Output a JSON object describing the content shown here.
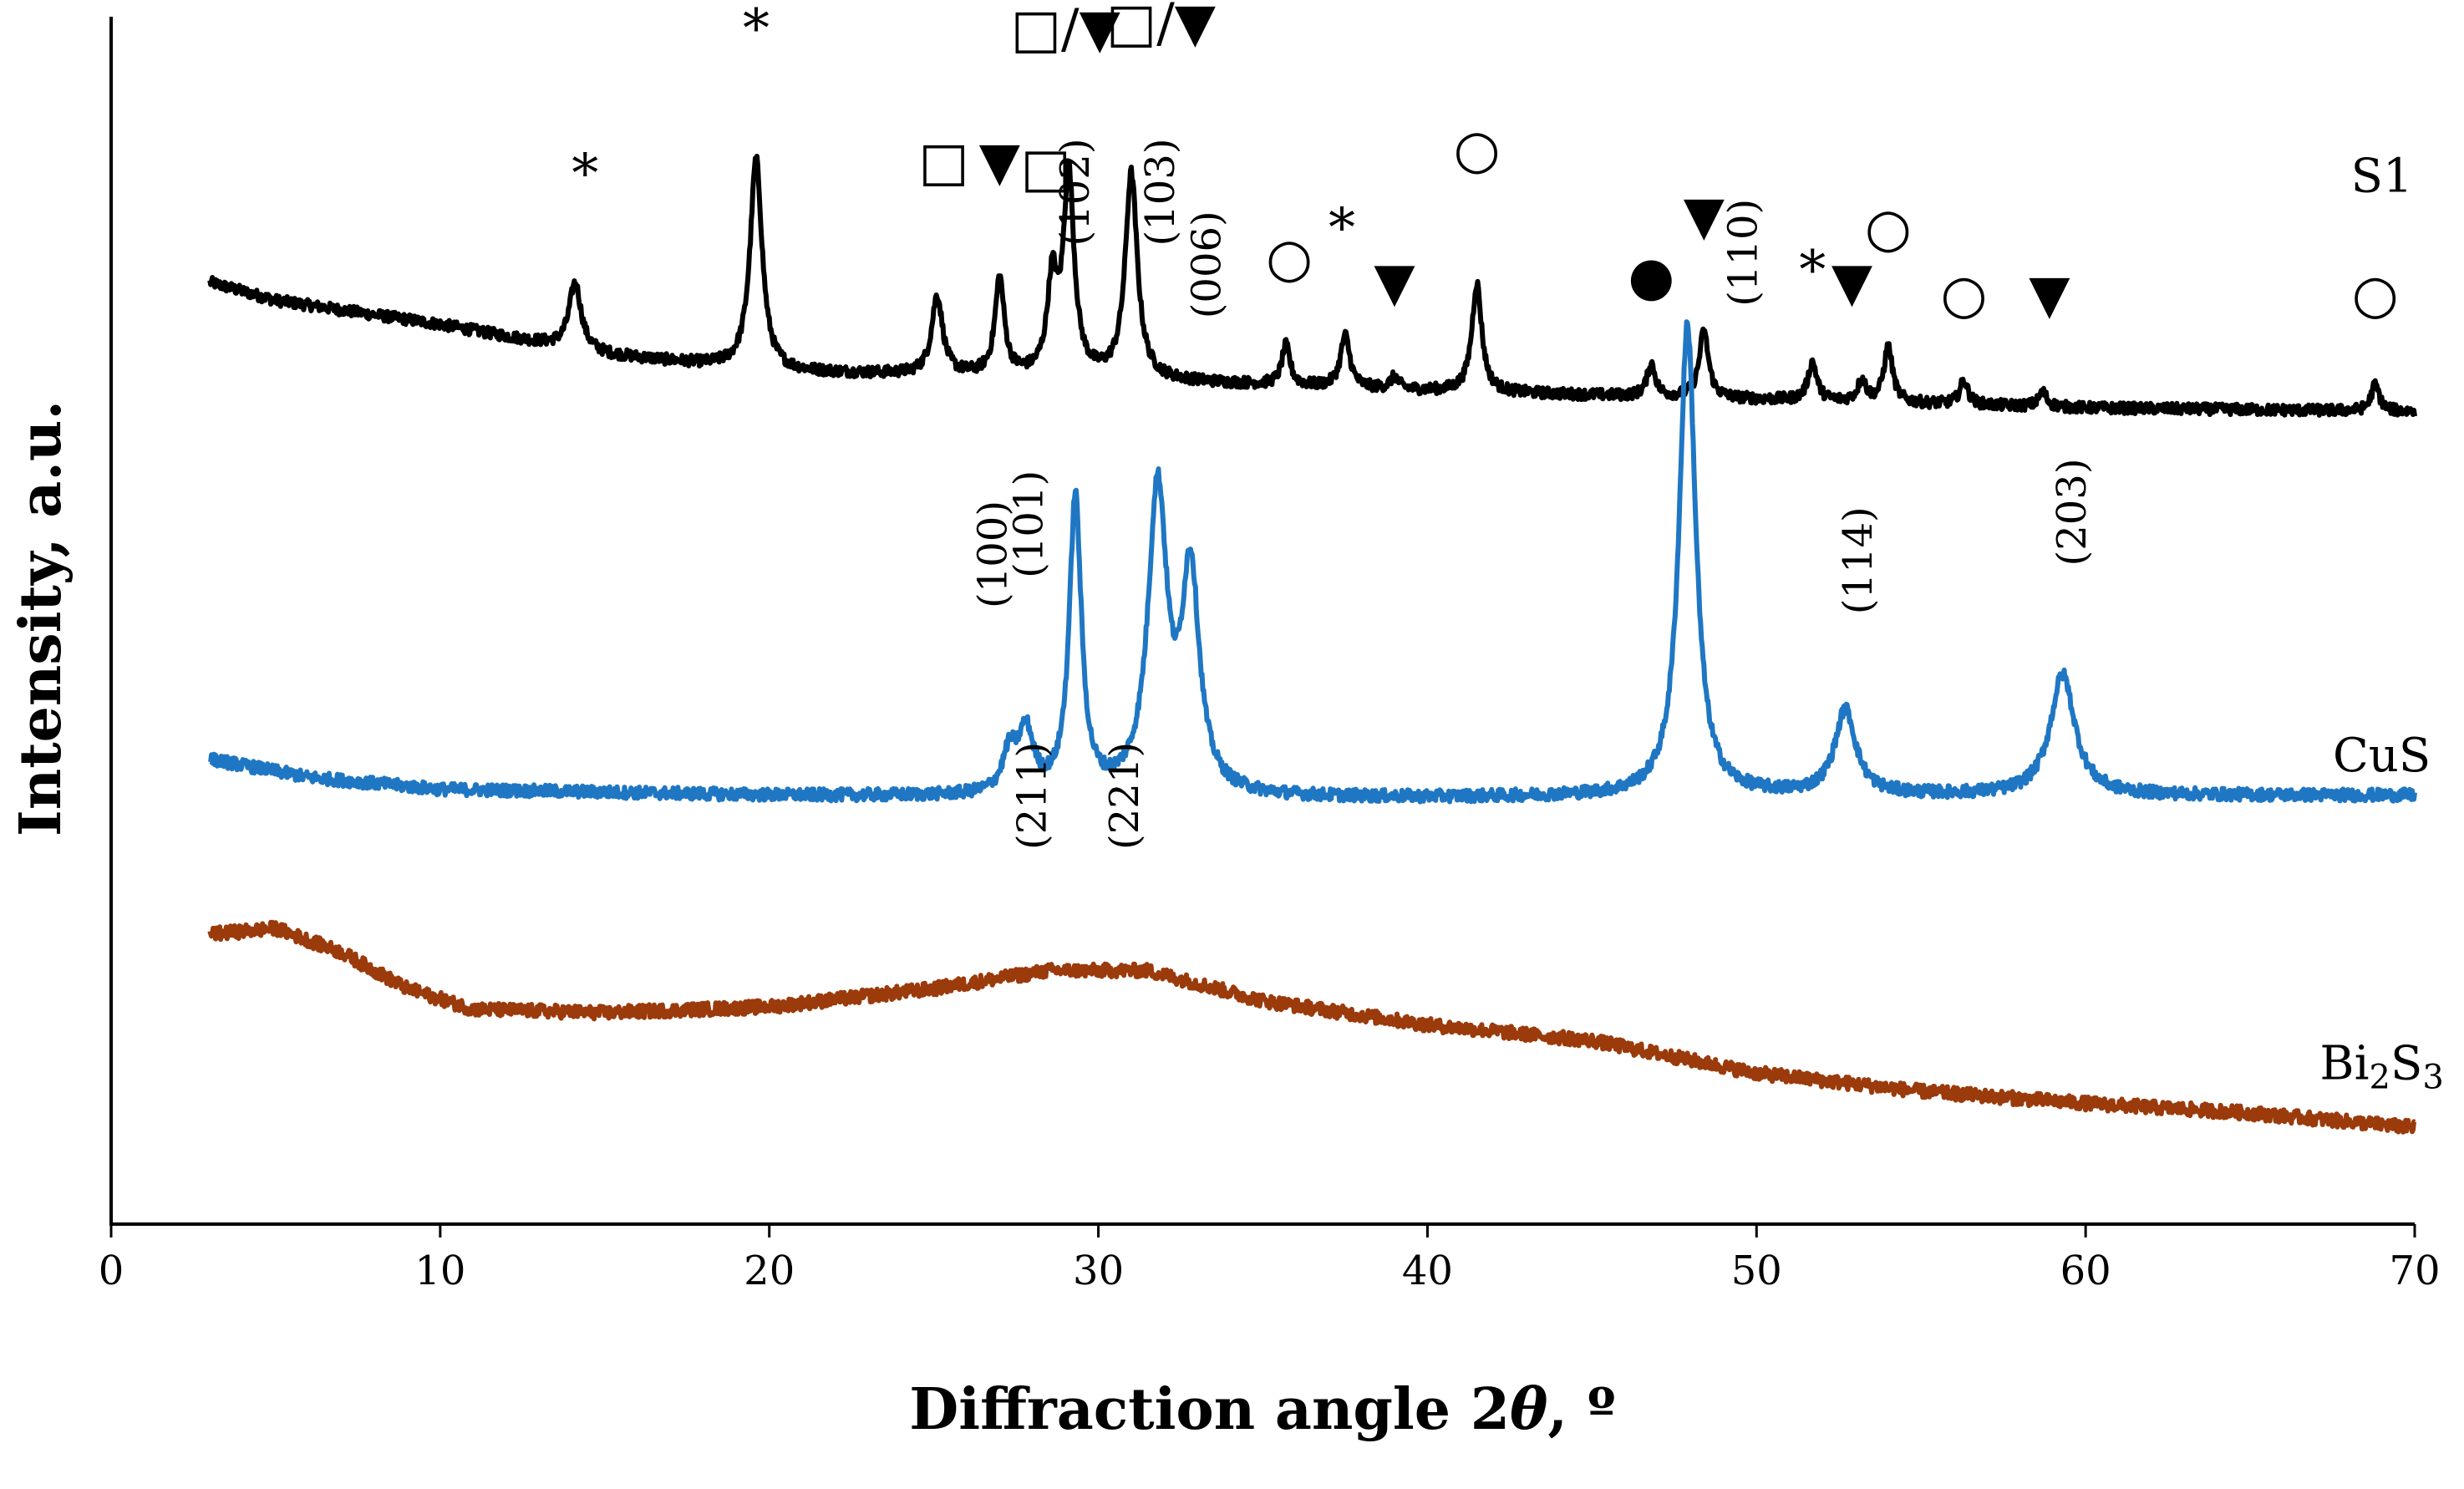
{
  "chart_data": {
    "type": "line",
    "title": "",
    "xlabel": "Diffraction angle 2θ, º",
    "xlabel_parts": {
      "main": "Diffraction angle 2",
      "theta": "θ",
      "unit": ", º"
    },
    "ylabel": "Intensity, a.u.",
    "xlim": [
      0,
      70
    ],
    "ylim": [
      0,
      100
    ],
    "xticks": [
      0,
      10,
      20,
      30,
      40,
      50,
      60,
      70
    ],
    "xtick_labels": [
      "0",
      "10",
      "20",
      "30",
      "40",
      "50",
      "60",
      "70"
    ],
    "y_ticks_shown": false,
    "grid": false,
    "legend": "none",
    "series": [
      {
        "name": "S1",
        "label_parts": [
          "S1"
        ],
        "color": "#000000",
        "x_range": [
          3,
          70
        ],
        "baseline": [
          [
            3,
            78
          ],
          [
            5,
            76.5
          ],
          [
            10,
            74.5
          ],
          [
            15,
            72
          ],
          [
            20,
            70.6
          ],
          [
            30,
            70
          ],
          [
            40,
            69
          ],
          [
            50,
            68.3
          ],
          [
            60,
            67.6
          ],
          [
            70,
            67.3
          ]
        ],
        "noise": 0.45,
        "peaks": [
          {
            "x": 14.1,
            "h": 5.5,
            "w": 0.22
          },
          {
            "x": 19.6,
            "h": 17.5,
            "w": 0.22
          },
          {
            "x": 25.1,
            "h": 6.5,
            "w": 0.2
          },
          {
            "x": 27.0,
            "h": 8.0,
            "w": 0.17
          },
          {
            "x": 28.6,
            "h": 7.5,
            "w": 0.18
          },
          {
            "x": 29.1,
            "h": 16.5,
            "w": 0.2
          },
          {
            "x": 31.0,
            "h": 17.0,
            "w": 0.22
          },
          {
            "x": 35.7,
            "h": 3.3,
            "w": 0.15
          },
          {
            "x": 37.5,
            "h": 4.3,
            "w": 0.17
          },
          {
            "x": 39.0,
            "h": 1.0,
            "w": 0.15
          },
          {
            "x": 41.5,
            "h": 9.0,
            "w": 0.18
          },
          {
            "x": 46.8,
            "h": 2.7,
            "w": 0.15
          },
          {
            "x": 48.4,
            "h": 5.5,
            "w": 0.17
          },
          {
            "x": 51.7,
            "h": 3.2,
            "w": 0.16
          },
          {
            "x": 53.2,
            "h": 1.8,
            "w": 0.15
          },
          {
            "x": 54.0,
            "h": 4.6,
            "w": 0.16
          },
          {
            "x": 56.3,
            "h": 2.0,
            "w": 0.15
          },
          {
            "x": 58.7,
            "h": 1.2,
            "w": 0.15
          },
          {
            "x": 68.8,
            "h": 2.2,
            "w": 0.15
          }
        ]
      },
      {
        "name": "CuS",
        "label_parts": [
          "CuS"
        ],
        "color": "#1f77c4",
        "x_range": [
          3,
          70
        ],
        "baseline": [
          [
            3,
            38.5
          ],
          [
            6,
            37
          ],
          [
            10,
            36
          ],
          [
            20,
            35.5
          ],
          [
            30,
            35.3
          ],
          [
            40,
            35.3
          ],
          [
            50,
            35.5
          ],
          [
            60,
            35.5
          ],
          [
            70,
            35.5
          ]
        ],
        "noise": 0.5,
        "peaks": [
          {
            "x": 27.3,
            "h": 3.2,
            "w": 0.25
          },
          {
            "x": 27.8,
            "h": 5.0,
            "w": 0.28
          },
          {
            "x": 29.3,
            "h": 24.5,
            "w": 0.22
          },
          {
            "x": 31.8,
            "h": 25.0,
            "w": 0.35
          },
          {
            "x": 32.8,
            "h": 18.0,
            "w": 0.32
          },
          {
            "x": 47.9,
            "h": 39.0,
            "w": 0.3
          },
          {
            "x": 52.7,
            "h": 7.0,
            "w": 0.38
          },
          {
            "x": 59.3,
            "h": 10.0,
            "w": 0.45
          }
        ]
      },
      {
        "name": "Bi2S3",
        "label_parts": [
          "Bi",
          "2",
          "S",
          "3"
        ],
        "color": "#9b3a0b",
        "x_range": [
          3,
          70
        ],
        "baseline": [
          [
            3,
            24
          ],
          [
            5,
            24.5
          ],
          [
            7,
            22.5
          ],
          [
            9,
            19.5
          ],
          [
            11,
            17.8
          ],
          [
            15,
            17.5
          ],
          [
            20,
            18.0
          ],
          [
            25,
            19.5
          ],
          [
            28.5,
            21.0
          ],
          [
            31.5,
            21.0
          ],
          [
            35,
            18.5
          ],
          [
            40,
            16.5
          ],
          [
            45,
            15.2
          ],
          [
            50,
            12.5
          ],
          [
            55,
            11.0
          ],
          [
            60,
            10.0
          ],
          [
            65,
            9.2
          ],
          [
            70,
            8.0
          ]
        ],
        "noise": 0.55,
        "peaks": []
      }
    ],
    "reflections": [
      {
        "hkl": "(100)",
        "x": 27.2,
        "y": 51
      },
      {
        "hkl": "(101)",
        "x": 28.3,
        "y": 53.5
      },
      {
        "hkl": "(102)",
        "x": 29.7,
        "y": 81
      },
      {
        "hkl": "(103)",
        "x": 32.3,
        "y": 81
      },
      {
        "hkl": "(006)",
        "x": 33.7,
        "y": 75
      },
      {
        "hkl": "(110)",
        "x": 50.0,
        "y": 76
      },
      {
        "hkl": "(114)",
        "x": 53.5,
        "y": 50.5
      },
      {
        "hkl": "(203)",
        "x": 60.0,
        "y": 54.5
      },
      {
        "hkl": "(211)",
        "x": 28.4,
        "y": 31
      },
      {
        "hkl": "(221)",
        "x": 31.2,
        "y": 31
      }
    ],
    "phase_markers": [
      {
        "symbol": "*",
        "x": 14.4,
        "y": 85.5
      },
      {
        "symbol": "*",
        "x": 19.6,
        "y": 97.5
      },
      {
        "symbol": "□",
        "x": 25.3,
        "y": 86.5
      },
      {
        "symbol": "▼",
        "x": 27.0,
        "y": 86.5
      },
      {
        "symbol": "□",
        "x": 28.4,
        "y": 86.0
      },
      {
        "symbol": "□/▼",
        "x": 29.0,
        "y": 97.5
      },
      {
        "symbol": "□/▼",
        "x": 31.9,
        "y": 98.0
      },
      {
        "symbol": "○",
        "x": 35.8,
        "y": 78.5
      },
      {
        "symbol": "*",
        "x": 37.4,
        "y": 81.0
      },
      {
        "symbol": "▼",
        "x": 39.0,
        "y": 76.5
      },
      {
        "symbol": "○",
        "x": 41.5,
        "y": 87.5
      },
      {
        "symbol": "●",
        "x": 46.8,
        "y": 77.0
      },
      {
        "symbol": "▼",
        "x": 48.4,
        "y": 82.0
      },
      {
        "symbol": "*",
        "x": 51.7,
        "y": 77.5
      },
      {
        "symbol": "▼",
        "x": 52.9,
        "y": 76.5
      },
      {
        "symbol": "○",
        "x": 54.0,
        "y": 81.0
      },
      {
        "symbol": "○",
        "x": 56.3,
        "y": 75.5
      },
      {
        "symbol": "▼",
        "x": 58.9,
        "y": 75.5
      },
      {
        "symbol": "○",
        "x": 68.8,
        "y": 75.5
      }
    ],
    "series_labels": [
      {
        "series": "S1",
        "x": 69.0,
        "y": 85.5
      },
      {
        "series": "CuS",
        "x": 69.0,
        "y": 37.5
      },
      {
        "series": "Bi2S3",
        "x": 69.0,
        "y": 12.0
      }
    ]
  }
}
